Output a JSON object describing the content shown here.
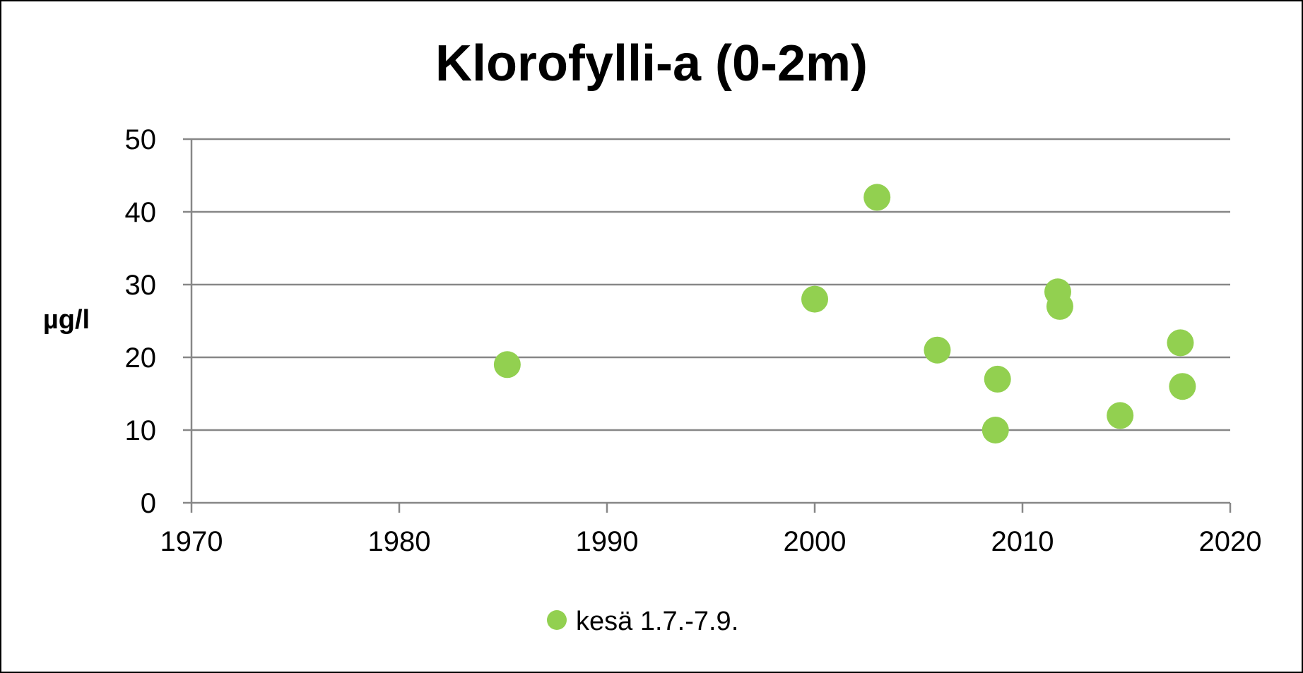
{
  "chart_data": {
    "type": "scatter",
    "title": "Klorofylli-a (0-2m)",
    "xlabel": "",
    "ylabel": "µg/l",
    "xlim": [
      1970,
      2020
    ],
    "ylim": [
      0,
      50
    ],
    "xticks": [
      1970,
      1980,
      1990,
      2000,
      2010,
      2020
    ],
    "yticks": [
      0,
      10,
      20,
      30,
      40,
      50
    ],
    "grid": "horizontal",
    "legend_position": "bottom",
    "series": [
      {
        "name": "kesä 1.7.-7.9.",
        "color": "#92d050",
        "points": [
          {
            "x": 1985.2,
            "y": 19
          },
          {
            "x": 2000.0,
            "y": 28
          },
          {
            "x": 2003.0,
            "y": 42
          },
          {
            "x": 2005.9,
            "y": 21
          },
          {
            "x": 2008.8,
            "y": 17
          },
          {
            "x": 2008.7,
            "y": 10
          },
          {
            "x": 2011.7,
            "y": 29
          },
          {
            "x": 2011.8,
            "y": 27
          },
          {
            "x": 2014.7,
            "y": 12
          },
          {
            "x": 2017.6,
            "y": 22
          },
          {
            "x": 2017.7,
            "y": 16
          }
        ]
      }
    ]
  }
}
